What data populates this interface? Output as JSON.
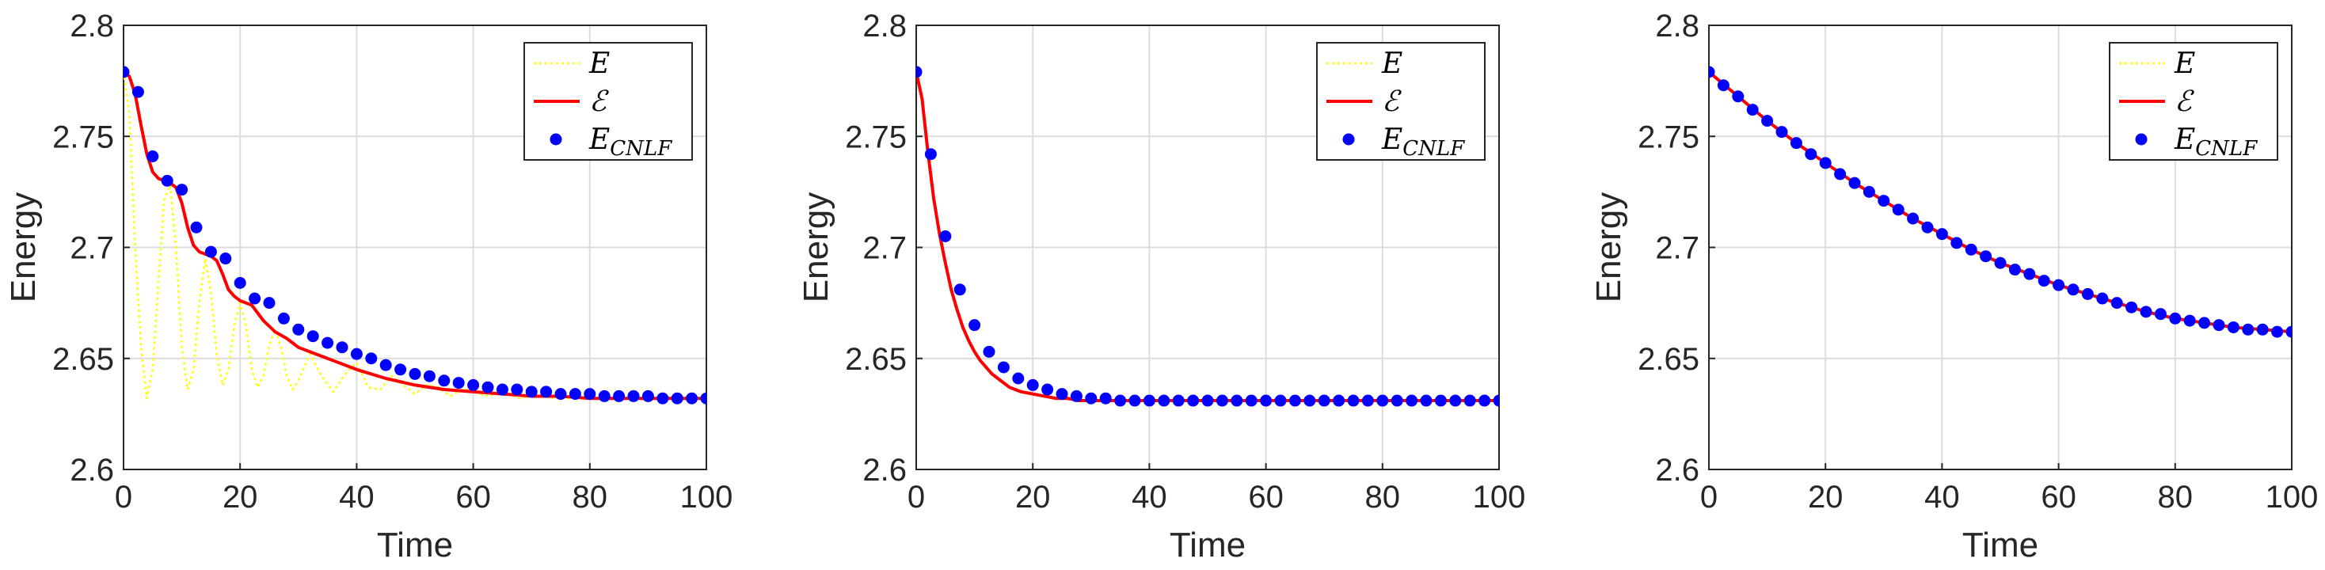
{
  "chart_data": [
    {
      "type": "line",
      "xlabel": "Time",
      "ylabel": "Energy",
      "xlim": [
        0,
        100
      ],
      "ylim": [
        2.6,
        2.8
      ],
      "xticks": [
        "0",
        "20",
        "40",
        "60",
        "80",
        "100"
      ],
      "yticks": [
        "2.6",
        "2.65",
        "2.7",
        "2.75",
        "2.8"
      ],
      "grid": true,
      "legend_position": "top-right",
      "series": [
        {
          "name": "E",
          "style": "dotted-line",
          "color": "#FFFF00",
          "x": [
            0,
            1,
            2,
            3,
            4,
            5,
            6,
            7,
            8,
            9,
            10,
            11,
            12,
            13,
            14,
            15,
            16,
            17,
            18,
            19,
            20,
            21,
            22,
            23,
            24,
            25,
            26,
            27,
            28,
            29,
            30,
            32,
            34,
            36,
            38,
            40,
            42,
            44,
            46,
            48,
            50,
            52,
            54,
            56,
            58,
            60,
            62,
            64,
            66,
            68,
            70,
            72,
            74,
            76,
            78,
            80,
            85,
            90,
            95,
            100
          ],
          "values": [
            2.779,
            2.76,
            2.7,
            2.655,
            2.632,
            2.645,
            2.685,
            2.722,
            2.728,
            2.7,
            2.655,
            2.636,
            2.645,
            2.675,
            2.695,
            2.68,
            2.652,
            2.638,
            2.645,
            2.665,
            2.675,
            2.665,
            2.645,
            2.637,
            2.642,
            2.656,
            2.663,
            2.655,
            2.642,
            2.636,
            2.64,
            2.652,
            2.642,
            2.635,
            2.643,
            2.648,
            2.637,
            2.636,
            2.642,
            2.638,
            2.634,
            2.638,
            2.637,
            2.633,
            2.636,
            2.636,
            2.633,
            2.634,
            2.634,
            2.632,
            2.633,
            2.633,
            2.632,
            2.632,
            2.632,
            2.632,
            2.632,
            2.632,
            2.632,
            2.632
          ]
        },
        {
          "name": "ℰ",
          "style": "solid-line",
          "color": "#FF0000",
          "x": [
            0,
            1,
            2,
            3,
            4,
            5,
            6,
            7,
            8,
            9,
            10,
            11,
            12,
            13,
            14,
            15,
            16,
            17,
            18,
            19,
            20,
            22,
            24,
            26,
            28,
            30,
            32,
            34,
            36,
            38,
            40,
            45,
            50,
            55,
            60,
            65,
            70,
            75,
            80,
            85,
            90,
            95,
            100
          ],
          "values": [
            2.779,
            2.777,
            2.769,
            2.755,
            2.742,
            2.734,
            2.731,
            2.73,
            2.729,
            2.727,
            2.72,
            2.709,
            2.701,
            2.698,
            2.697,
            2.696,
            2.694,
            2.688,
            2.681,
            2.678,
            2.676,
            2.674,
            2.667,
            2.662,
            2.659,
            2.655,
            2.653,
            2.651,
            2.649,
            2.647,
            2.645,
            2.641,
            2.638,
            2.636,
            2.635,
            2.634,
            2.633,
            2.633,
            2.632,
            2.632,
            2.632,
            2.632,
            2.632
          ]
        },
        {
          "name": "E_CNLF",
          "style": "markers",
          "color": "#0000FF",
          "x": [
            0,
            2.5,
            5,
            7.5,
            10,
            12.5,
            15,
            17.5,
            20,
            22.5,
            25,
            27.5,
            30,
            32.5,
            35,
            37.5,
            40,
            42.5,
            45,
            47.5,
            50,
            52.5,
            55,
            57.5,
            60,
            62.5,
            65,
            67.5,
            70,
            72.5,
            75,
            77.5,
            80,
            82.5,
            85,
            87.5,
            90,
            92.5,
            95,
            97.5,
            100
          ],
          "values": [
            2.779,
            2.77,
            2.741,
            2.73,
            2.726,
            2.709,
            2.698,
            2.695,
            2.684,
            2.677,
            2.675,
            2.668,
            2.663,
            2.66,
            2.657,
            2.655,
            2.652,
            2.65,
            2.647,
            2.645,
            2.643,
            2.642,
            2.64,
            2.639,
            2.638,
            2.637,
            2.636,
            2.636,
            2.635,
            2.635,
            2.634,
            2.634,
            2.634,
            2.633,
            2.633,
            2.633,
            2.633,
            2.632,
            2.632,
            2.632,
            2.632
          ]
        }
      ]
    },
    {
      "type": "line",
      "xlabel": "Time",
      "ylabel": "Energy",
      "xlim": [
        0,
        100
      ],
      "ylim": [
        2.6,
        2.8
      ],
      "xticks": [
        "0",
        "20",
        "40",
        "60",
        "80",
        "100"
      ],
      "yticks": [
        "2.6",
        "2.65",
        "2.7",
        "2.75",
        "2.8"
      ],
      "grid": true,
      "legend_position": "top-right",
      "series": [
        {
          "name": "E",
          "style": "dotted-line",
          "color": "#FFFF00",
          "x": [
            0,
            1,
            2,
            3,
            4,
            5,
            6,
            7,
            8,
            9,
            10,
            11,
            12,
            13,
            14,
            15,
            16,
            18,
            20,
            22,
            24,
            26,
            28,
            30,
            35,
            40,
            50,
            60,
            70,
            80,
            90,
            100
          ],
          "values": [
            2.779,
            2.767,
            2.743,
            2.722,
            2.706,
            2.693,
            2.681,
            2.672,
            2.664,
            2.658,
            2.653,
            2.649,
            2.646,
            2.643,
            2.641,
            2.639,
            2.637,
            2.635,
            2.634,
            2.633,
            2.632,
            2.632,
            2.631,
            2.631,
            2.631,
            2.631,
            2.631,
            2.631,
            2.631,
            2.631,
            2.631,
            2.631
          ]
        },
        {
          "name": "ℰ",
          "style": "solid-line",
          "color": "#FF0000",
          "x": [
            0,
            1,
            2,
            3,
            4,
            5,
            6,
            7,
            8,
            9,
            10,
            11,
            12,
            13,
            14,
            15,
            16,
            18,
            20,
            22,
            24,
            26,
            28,
            30,
            35,
            40,
            50,
            60,
            70,
            80,
            90,
            100
          ],
          "values": [
            2.779,
            2.767,
            2.743,
            2.722,
            2.706,
            2.693,
            2.681,
            2.672,
            2.664,
            2.658,
            2.653,
            2.649,
            2.646,
            2.643,
            2.641,
            2.639,
            2.637,
            2.635,
            2.634,
            2.633,
            2.632,
            2.632,
            2.631,
            2.631,
            2.631,
            2.631,
            2.631,
            2.631,
            2.631,
            2.631,
            2.631,
            2.631
          ]
        },
        {
          "name": "E_CNLF",
          "style": "markers",
          "color": "#0000FF",
          "x": [
            0,
            2.5,
            5,
            7.5,
            10,
            12.5,
            15,
            17.5,
            20,
            22.5,
            25,
            27.5,
            30,
            32.5,
            35,
            37.5,
            40,
            42.5,
            45,
            47.5,
            50,
            52.5,
            55,
            57.5,
            60,
            62.5,
            65,
            67.5,
            70,
            72.5,
            75,
            77.5,
            80,
            82.5,
            85,
            87.5,
            90,
            92.5,
            95,
            97.5,
            100
          ],
          "values": [
            2.779,
            2.742,
            2.705,
            2.681,
            2.665,
            2.653,
            2.646,
            2.641,
            2.638,
            2.636,
            2.634,
            2.633,
            2.632,
            2.632,
            2.631,
            2.631,
            2.631,
            2.631,
            2.631,
            2.631,
            2.631,
            2.631,
            2.631,
            2.631,
            2.631,
            2.631,
            2.631,
            2.631,
            2.631,
            2.631,
            2.631,
            2.631,
            2.631,
            2.631,
            2.631,
            2.631,
            2.631,
            2.631,
            2.631,
            2.631,
            2.631
          ]
        }
      ]
    },
    {
      "type": "line",
      "xlabel": "Time",
      "ylabel": "Energy",
      "xlim": [
        0,
        100
      ],
      "ylim": [
        2.6,
        2.8
      ],
      "xticks": [
        "0",
        "20",
        "40",
        "60",
        "80",
        "100"
      ],
      "yticks": [
        "2.6",
        "2.65",
        "2.7",
        "2.75",
        "2.8"
      ],
      "grid": true,
      "legend_position": "top-right",
      "series": [
        {
          "name": "E",
          "style": "dotted-line",
          "color": "#FFFF00",
          "x": [
            0,
            5,
            10,
            15,
            20,
            25,
            30,
            35,
            40,
            45,
            50,
            55,
            60,
            65,
            70,
            75,
            80,
            85,
            90,
            95,
            100
          ],
          "values": [
            2.779,
            2.768,
            2.757,
            2.747,
            2.738,
            2.729,
            2.721,
            2.713,
            2.706,
            2.699,
            2.693,
            2.688,
            2.683,
            2.679,
            2.675,
            2.671,
            2.668,
            2.666,
            2.664,
            2.663,
            2.662
          ]
        },
        {
          "name": "ℰ",
          "style": "solid-line",
          "color": "#FF0000",
          "x": [
            0,
            5,
            10,
            15,
            20,
            25,
            30,
            35,
            40,
            45,
            50,
            55,
            60,
            65,
            70,
            75,
            80,
            85,
            90,
            95,
            100
          ],
          "values": [
            2.779,
            2.768,
            2.757,
            2.747,
            2.738,
            2.729,
            2.721,
            2.713,
            2.706,
            2.699,
            2.693,
            2.688,
            2.683,
            2.679,
            2.675,
            2.671,
            2.668,
            2.666,
            2.664,
            2.663,
            2.662
          ]
        },
        {
          "name": "E_CNLF",
          "style": "markers",
          "color": "#0000FF",
          "x": [
            0,
            2.5,
            5,
            7.5,
            10,
            12.5,
            15,
            17.5,
            20,
            22.5,
            25,
            27.5,
            30,
            32.5,
            35,
            37.5,
            40,
            42.5,
            45,
            47.5,
            50,
            52.5,
            55,
            57.5,
            60,
            62.5,
            65,
            67.5,
            70,
            72.5,
            75,
            77.5,
            80,
            82.5,
            85,
            87.5,
            90,
            92.5,
            95,
            97.5,
            100
          ],
          "values": [
            2.779,
            2.773,
            2.768,
            2.762,
            2.757,
            2.752,
            2.747,
            2.742,
            2.738,
            2.733,
            2.729,
            2.725,
            2.721,
            2.717,
            2.713,
            2.709,
            2.706,
            2.702,
            2.699,
            2.696,
            2.693,
            2.69,
            2.688,
            2.685,
            2.683,
            2.681,
            2.679,
            2.677,
            2.675,
            2.673,
            2.671,
            2.67,
            2.668,
            2.667,
            2.666,
            2.665,
            2.664,
            2.663,
            2.663,
            2.662,
            2.662
          ]
        }
      ]
    }
  ]
}
